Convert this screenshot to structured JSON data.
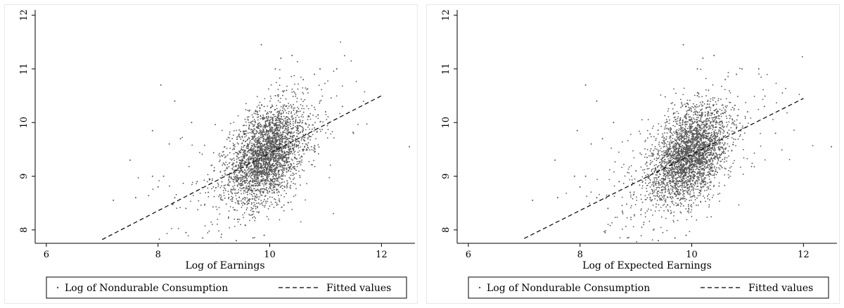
{
  "chart_data": [
    {
      "type": "scatter",
      "xlabel": "Log of Earnings",
      "ylabel": "",
      "xlim": [
        5.8,
        12.6
      ],
      "ylim": [
        7.75,
        12.1
      ],
      "xticks": [
        6,
        8,
        10,
        12
      ],
      "yticks": [
        8,
        9,
        10,
        11,
        12
      ],
      "grid": false,
      "legend_position": "bottom",
      "legend": [
        {
          "name": "Log of Nondurable Consumption",
          "marker": "dot"
        },
        {
          "name": "Fitted values",
          "marker": "dashed-line"
        }
      ],
      "series": [
        {
          "name": "Log of Nondurable Consumption",
          "kind": "scatter",
          "color": "#555555",
          "points": [
            [
              9.2,
              9.35
            ],
            [
              9.5,
              9.1
            ],
            [
              9.6,
              9.6
            ],
            [
              9.7,
              9.4
            ],
            [
              9.8,
              9.2
            ],
            [
              9.9,
              9.5
            ],
            [
              10.0,
              9.3
            ],
            [
              10.1,
              9.7
            ],
            [
              10.2,
              9.4
            ],
            [
              10.3,
              9.8
            ],
            [
              9.4,
              8.9
            ],
            [
              9.6,
              8.7
            ],
            [
              9.8,
              8.5
            ],
            [
              10.0,
              8.8
            ],
            [
              10.2,
              9.0
            ],
            [
              10.4,
              9.6
            ],
            [
              10.5,
              10.0
            ],
            [
              10.6,
              9.5
            ],
            [
              10.8,
              9.9
            ],
            [
              11.0,
              10.2
            ],
            [
              9.7,
              10.1
            ],
            [
              9.9,
              10.3
            ],
            [
              10.1,
              10.5
            ],
            [
              10.3,
              10.6
            ],
            [
              10.6,
              10.8
            ],
            [
              10.8,
              10.9
            ],
            [
              11.3,
              10.3
            ],
            [
              11.5,
              9.8
            ],
            [
              9.0,
              9.1
            ],
            [
              8.9,
              8.7
            ],
            [
              8.7,
              8.9
            ],
            [
              8.5,
              8.4
            ],
            [
              8.3,
              8.6
            ],
            [
              8.1,
              9.0
            ],
            [
              8.0,
              8.8
            ],
            [
              8.2,
              9.6
            ],
            [
              8.4,
              9.7
            ],
            [
              8.6,
              10.0
            ],
            [
              8.3,
              10.4
            ],
            [
              8.05,
              10.7
            ],
            [
              7.9,
              9.85
            ],
            [
              7.5,
              9.3
            ],
            [
              7.2,
              8.55
            ],
            [
              7.6,
              8.6
            ],
            [
              7.9,
              9.0
            ],
            [
              8.5,
              7.95
            ],
            [
              8.8,
              7.85
            ],
            [
              9.4,
              7.8
            ],
            [
              9.7,
              7.85
            ],
            [
              9.9,
              7.9
            ],
            [
              10.1,
              11.0
            ],
            [
              10.2,
              11.2
            ],
            [
              10.4,
              11.25
            ],
            [
              9.85,
              11.45
            ],
            [
              10.9,
              11.0
            ],
            [
              11.2,
              11.0
            ],
            [
              12.5,
              9.55
            ],
            [
              10.0,
              9.6
            ],
            [
              9.95,
              9.05
            ],
            [
              10.05,
              9.2
            ],
            [
              9.75,
              9.7
            ],
            [
              10.15,
              9.9
            ],
            [
              9.85,
              9.3
            ],
            [
              10.25,
              9.15
            ],
            [
              9.65,
              9.25
            ],
            [
              10.35,
              9.45
            ]
          ]
        },
        {
          "name": "Fitted values",
          "kind": "line",
          "style": "dashed",
          "color": "#000000",
          "x": [
            7.0,
            12.0
          ],
          "y": [
            7.82,
            10.5
          ]
        }
      ]
    },
    {
      "type": "scatter",
      "xlabel": "Log of Expected Earnings",
      "ylabel": "",
      "xlim": [
        5.8,
        12.6
      ],
      "ylim": [
        7.75,
        12.1
      ],
      "xticks": [
        6,
        8,
        10,
        12
      ],
      "yticks": [
        8,
        9,
        10,
        11,
        12
      ],
      "grid": false,
      "legend_position": "bottom",
      "legend": [
        {
          "name": "Log of Nondurable Consumption",
          "marker": "dot"
        },
        {
          "name": "Fitted values",
          "marker": "dashed-line"
        }
      ],
      "series": [
        {
          "name": "Log of Nondurable Consumption",
          "kind": "scatter",
          "color": "#555555",
          "points": [
            [
              9.2,
              9.35
            ],
            [
              9.5,
              9.1
            ],
            [
              9.6,
              9.6
            ],
            [
              9.7,
              9.4
            ],
            [
              9.8,
              9.2
            ],
            [
              9.9,
              9.5
            ],
            [
              10.0,
              9.3
            ],
            [
              10.1,
              9.7
            ],
            [
              10.2,
              9.4
            ],
            [
              10.3,
              9.8
            ],
            [
              9.4,
              8.9
            ],
            [
              9.6,
              8.7
            ],
            [
              9.8,
              8.5
            ],
            [
              10.0,
              8.8
            ],
            [
              10.2,
              9.0
            ],
            [
              10.4,
              9.6
            ],
            [
              10.5,
              10.0
            ],
            [
              10.6,
              9.5
            ],
            [
              10.8,
              9.9
            ],
            [
              11.0,
              10.2
            ],
            [
              9.7,
              10.1
            ],
            [
              9.9,
              10.3
            ],
            [
              10.1,
              10.5
            ],
            [
              10.3,
              10.6
            ],
            [
              10.6,
              10.8
            ],
            [
              10.8,
              10.9
            ],
            [
              11.3,
              10.3
            ],
            [
              11.5,
              9.8
            ],
            [
              9.0,
              9.1
            ],
            [
              8.9,
              8.7
            ],
            [
              8.7,
              8.9
            ],
            [
              8.5,
              8.4
            ],
            [
              8.3,
              8.6
            ],
            [
              8.1,
              9.0
            ],
            [
              8.0,
              8.8
            ],
            [
              8.2,
              9.6
            ],
            [
              8.4,
              9.7
            ],
            [
              8.6,
              10.0
            ],
            [
              8.3,
              10.4
            ],
            [
              8.1,
              10.7
            ],
            [
              7.95,
              9.85
            ],
            [
              7.55,
              9.3
            ],
            [
              7.15,
              8.55
            ],
            [
              7.6,
              8.6
            ],
            [
              7.9,
              9.0
            ],
            [
              8.45,
              7.95
            ],
            [
              8.85,
              7.85
            ],
            [
              9.4,
              7.8
            ],
            [
              9.7,
              7.85
            ],
            [
              9.9,
              7.9
            ],
            [
              10.1,
              11.0
            ],
            [
              10.2,
              11.2
            ],
            [
              10.4,
              11.25
            ],
            [
              9.85,
              11.45
            ],
            [
              10.9,
              11.0
            ],
            [
              11.2,
              11.0
            ],
            [
              12.5,
              9.55
            ],
            [
              10.0,
              9.6
            ],
            [
              9.95,
              9.05
            ],
            [
              10.05,
              9.2
            ],
            [
              9.75,
              9.7
            ],
            [
              10.15,
              9.9
            ],
            [
              9.85,
              9.3
            ],
            [
              10.25,
              9.15
            ],
            [
              9.65,
              9.25
            ],
            [
              10.35,
              9.45
            ]
          ]
        },
        {
          "name": "Fitted values",
          "kind": "line",
          "style": "dashed",
          "color": "#000000",
          "x": [
            7.0,
            12.0
          ],
          "y": [
            7.84,
            10.45
          ]
        }
      ]
    }
  ]
}
